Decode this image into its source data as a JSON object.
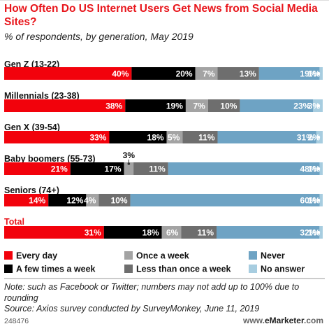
{
  "header": {
    "title": "How Often Do US Internet Users Get News from Social Media Sites?",
    "subtitle": "% of respondents, by generation, May 2019"
  },
  "chart_data": {
    "type": "bar",
    "orientation": "horizontal",
    "stacked": true,
    "percent_stacked": true,
    "categories": [
      "Gen Z (13-22)",
      "Millennials (23-38)",
      "Gen X (39-54)",
      "Baby boomers (55-73)",
      "Seniors (74+)",
      "Total"
    ],
    "series": [
      {
        "name": "Every day",
        "color": "#f2020c",
        "values": [
          40,
          38,
          33,
          21,
          14,
          31
        ]
      },
      {
        "name": "A few times a week",
        "color": "#000000",
        "values": [
          20,
          19,
          18,
          17,
          12,
          18
        ]
      },
      {
        "name": "Once a week",
        "color": "#a3a3a3",
        "values": [
          7,
          7,
          5,
          3,
          4,
          6
        ]
      },
      {
        "name": "Less than once a week",
        "color": "#6e6e6e",
        "values": [
          13,
          10,
          11,
          11,
          10,
          11
        ]
      },
      {
        "name": "Never",
        "color": "#6ea3c4",
        "values": [
          19,
          23,
          31,
          48,
          60,
          32
        ]
      },
      {
        "name": "No answer",
        "color": "#a7cde0",
        "values": [
          1,
          3,
          2,
          1,
          1,
          1
        ]
      }
    ],
    "value_labels": [
      [
        "40%",
        "20%",
        "7%",
        "13%",
        "19%",
        "1%"
      ],
      [
        "38%",
        "19%",
        "7%",
        "10%",
        "23%",
        "3%"
      ],
      [
        "33%",
        "18%",
        "5%",
        "11%",
        "31%",
        "2%"
      ],
      [
        "21%",
        "17%",
        "3%",
        "11%",
        "48%",
        "1%"
      ],
      [
        "14%",
        "12%",
        "4%",
        "10%",
        "60%",
        "1%"
      ],
      [
        "31%",
        "18%",
        "6%",
        "11%",
        "32%",
        "1%"
      ]
    ],
    "callouts": [
      {
        "category": "Baby boomers (55-73)",
        "series": "Once a week",
        "label": "3%"
      }
    ],
    "highlight_category": "Total",
    "legend_position": "bottom",
    "grid": false
  },
  "notes": {
    "note": "Note: such as Facebook or Twitter; numbers may not add up to 100% due to rounding",
    "source": "Source: Axios survey conducted by SurveyMonkey, June 11, 2019"
  },
  "footer": {
    "chart_id": "248476",
    "brand_prefix": "www.",
    "brand_name": "eMarketer",
    "brand_suffix": ".com"
  }
}
